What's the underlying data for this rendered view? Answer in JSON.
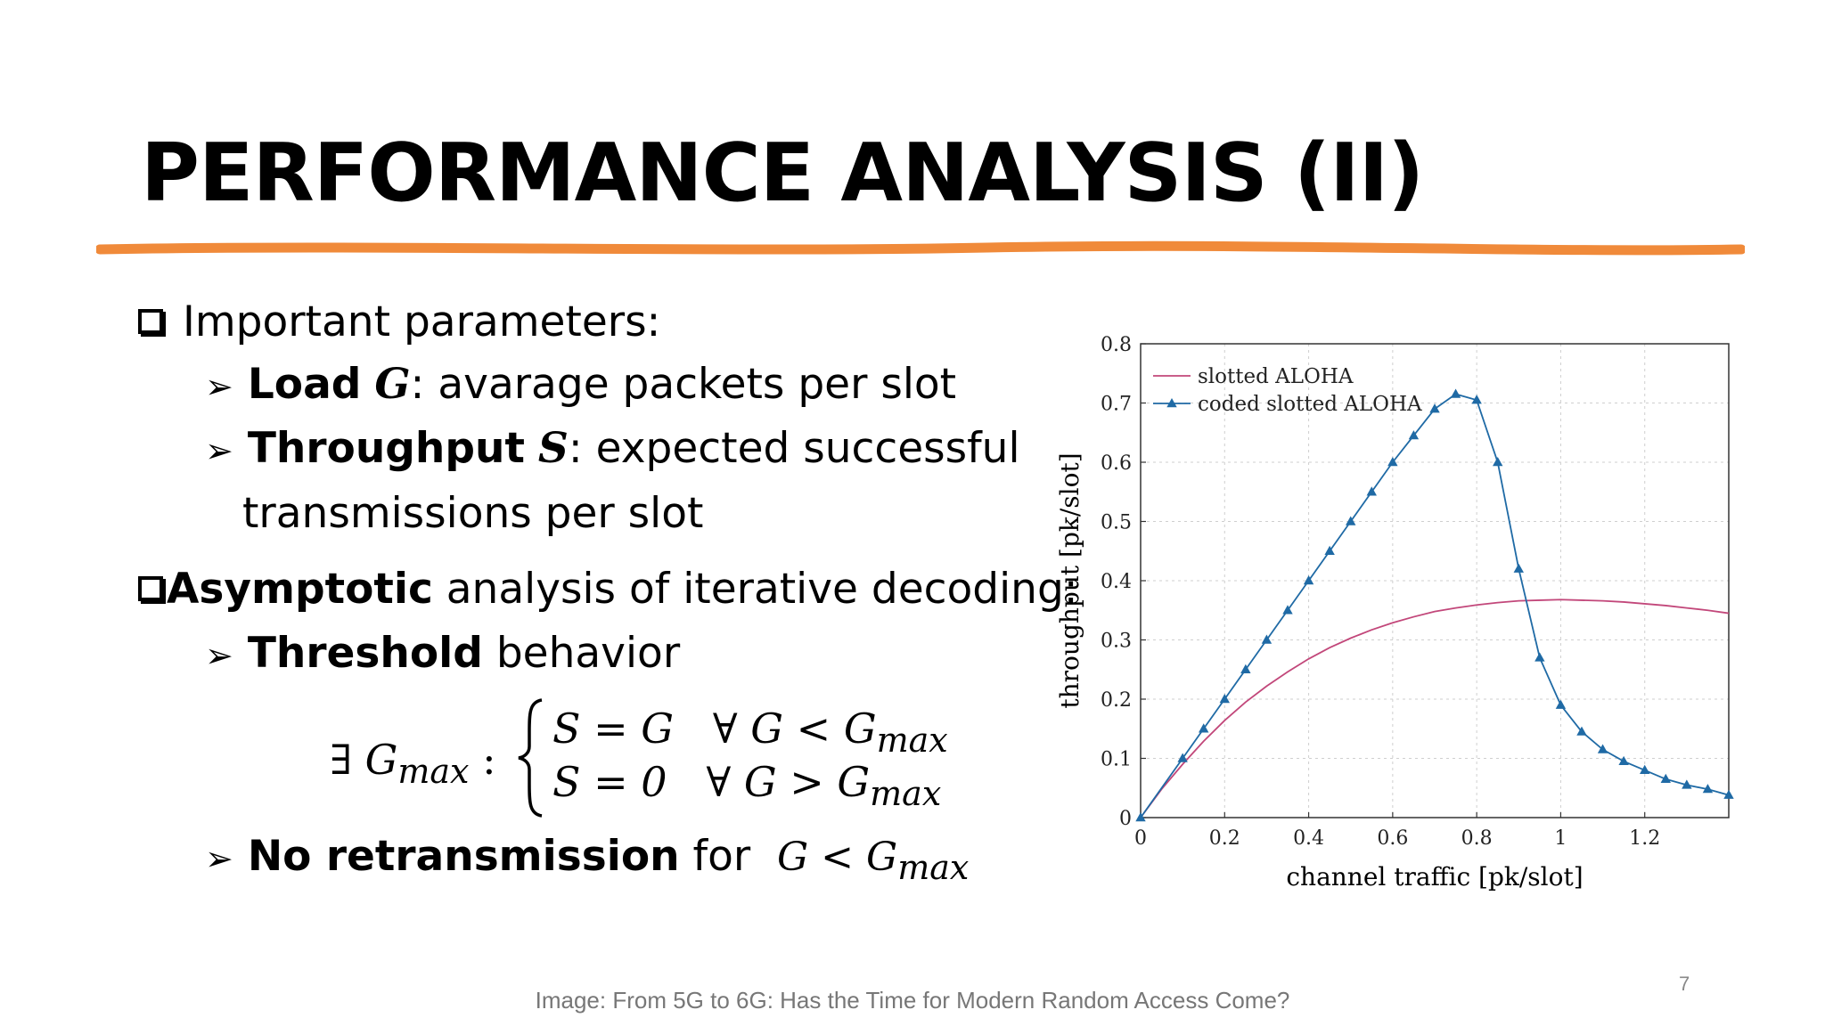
{
  "slide": {
    "title": "PERFORMANCE ANALYSIS (II)",
    "accent_color": "#F08A3A",
    "page_number": "7",
    "caption": "Image:  From 5G to 6G: Has the Time for Modern Random Access Come?"
  },
  "bullets": {
    "b1": {
      "text": "Important parameters:"
    },
    "b1_1": {
      "bold": "Load",
      "var": "G",
      "text": ": avarage packets per slot"
    },
    "b1_2": {
      "bold": "Throughput",
      "var": "S",
      "text": ": expected successful",
      "cont": "transmissions per slot"
    },
    "b2": {
      "bold": "Asymptotic",
      "text": " analysis of iterative decoding:"
    },
    "b2_1": {
      "bold": "Threshold",
      "text": " behavior"
    },
    "b2_2": {
      "bold": "No retransmission",
      "text": " for"
    }
  },
  "equation": {
    "exists": "∃",
    "G": "G",
    "max": "max",
    "colon": ":",
    "row1_lhs": "S = G",
    "row1_rhs": "∀ G < ",
    "row2_lhs": "S = 0",
    "row2_rhs": "∀ G > ",
    "cond": "G < "
  },
  "chart_data": {
    "type": "line",
    "xlabel": "channel traffic [pk/slot]",
    "ylabel": "throughput [pk/slot]",
    "xlim": [
      0,
      1.4
    ],
    "ylim": [
      0,
      0.8
    ],
    "xticks": [
      0,
      0.2,
      0.4,
      0.6,
      0.8,
      1,
      1.2
    ],
    "xtick_labels": [
      "0",
      "0.2",
      "0.4",
      "0.6",
      "0.8",
      "1",
      "1.2"
    ],
    "yticks": [
      0,
      0.1,
      0.2,
      0.3,
      0.4,
      0.5,
      0.6,
      0.7,
      0.8
    ],
    "ytick_labels": [
      "0",
      "0.1",
      "0.2",
      "0.3",
      "0.4",
      "0.5",
      "0.6",
      "0.7",
      "0.8"
    ],
    "grid": true,
    "legend_position": "top-left",
    "series": [
      {
        "name": "slotted ALOHA",
        "color": "#C2477A",
        "marker": "none",
        "x": [
          0,
          0.05,
          0.1,
          0.15,
          0.2,
          0.25,
          0.3,
          0.35,
          0.4,
          0.45,
          0.5,
          0.55,
          0.6,
          0.65,
          0.7,
          0.75,
          0.8,
          0.85,
          0.9,
          0.95,
          1.0,
          1.05,
          1.1,
          1.15,
          1.2,
          1.25,
          1.3,
          1.35,
          1.4
        ],
        "y": [
          0,
          0.048,
          0.09,
          0.129,
          0.164,
          0.195,
          0.222,
          0.246,
          0.268,
          0.287,
          0.303,
          0.317,
          0.329,
          0.339,
          0.348,
          0.354,
          0.359,
          0.363,
          0.366,
          0.367,
          0.368,
          0.367,
          0.366,
          0.364,
          0.361,
          0.358,
          0.354,
          0.35,
          0.345
        ]
      },
      {
        "name": "coded slotted ALOHA",
        "color": "#1F6AA5",
        "marker": "triangle",
        "x": [
          0,
          0.1,
          0.15,
          0.2,
          0.25,
          0.3,
          0.35,
          0.4,
          0.45,
          0.5,
          0.55,
          0.6,
          0.65,
          0.7,
          0.75,
          0.8,
          0.85,
          0.9,
          0.95,
          1.0,
          1.05,
          1.1,
          1.15,
          1.2,
          1.25,
          1.3,
          1.35,
          1.4
        ],
        "y": [
          0,
          0.1,
          0.15,
          0.2,
          0.25,
          0.3,
          0.35,
          0.4,
          0.45,
          0.5,
          0.55,
          0.6,
          0.645,
          0.69,
          0.715,
          0.705,
          0.6,
          0.42,
          0.27,
          0.19,
          0.145,
          0.115,
          0.095,
          0.08,
          0.065,
          0.055,
          0.048,
          0.038
        ]
      }
    ]
  }
}
